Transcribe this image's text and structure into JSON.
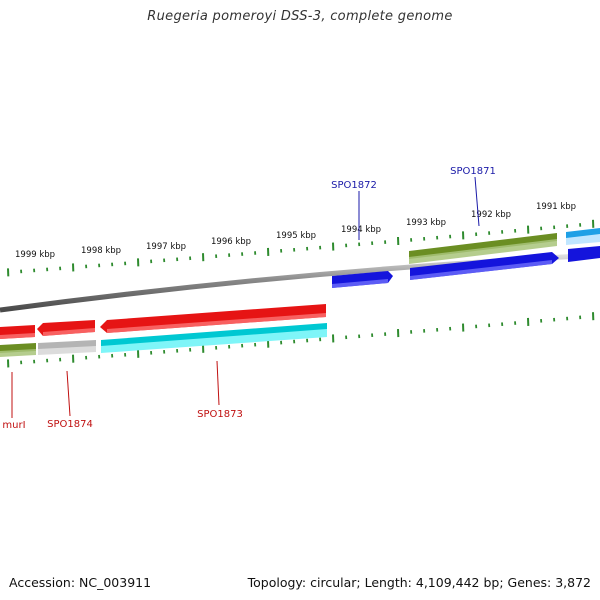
{
  "header": {
    "title": "Ruegeria pomeroyi DSS-3, complete genome"
  },
  "footer": {
    "accession": "Accession: NC_003911",
    "stats": "Topology: circular; Length: 4,109,442 bp; Genes: 3,872"
  },
  "scale": {
    "unit": "kbp",
    "labels": [
      "1999 kbp",
      "1998 kbp",
      "1997 kbp",
      "1996 kbp",
      "1995 kbp",
      "1994 kbp",
      "1993 kbp",
      "1992 kbp",
      "1991 kbp"
    ]
  },
  "colors": {
    "forward_cds": "#1414dc",
    "reverse_cds": "#e61414",
    "forward_cog": "#6b8e23",
    "reverse_cog": "#00e0e8",
    "gray_cog": "#b4b4b4",
    "sky_cog": "#1ea0e6",
    "backbone": "#8a8a8a",
    "ticks": "#2e8b2e",
    "forward_label": "#1a1aa8",
    "reverse_label": "#c01010"
  },
  "genes": {
    "forward": [
      "SPO1872",
      "SPO1871"
    ],
    "reverse": [
      "murI",
      "SPO1874",
      "SPO1873"
    ]
  }
}
